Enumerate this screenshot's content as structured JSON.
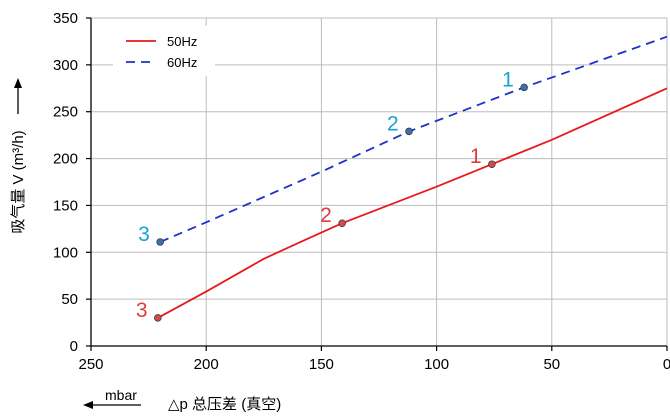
{
  "chart_data": {
    "type": "line",
    "xlabel": "△p 总压差 (真空)",
    "x_unit": "mbar",
    "ylabel": "吸气量 V (m³/h)",
    "xlim": [
      250,
      0
    ],
    "ylim": [
      0,
      350
    ],
    "x_ticks": [
      250,
      200,
      150,
      100,
      50,
      0
    ],
    "y_ticks": [
      0,
      50,
      100,
      150,
      200,
      250,
      300,
      350
    ],
    "grid": true,
    "legend_position": "top-left",
    "series": [
      {
        "name": "50Hz",
        "color": "#e8191c",
        "dash": "solid",
        "points": [
          {
            "x": 221,
            "y": 30
          },
          {
            "x": 200,
            "y": 58
          },
          {
            "x": 175,
            "y": 93
          },
          {
            "x": 160,
            "y": 110
          },
          {
            "x": 141,
            "y": 131
          },
          {
            "x": 100,
            "y": 170
          },
          {
            "x": 76,
            "y": 194
          },
          {
            "x": 50,
            "y": 220
          },
          {
            "x": 0,
            "y": 275
          }
        ],
        "markers": [
          {
            "x": 221,
            "y": 30,
            "label": "3"
          },
          {
            "x": 141,
            "y": 131,
            "label": "2"
          },
          {
            "x": 76,
            "y": 194,
            "label": "1"
          }
        ],
        "label_color": "#e03c3c"
      },
      {
        "name": "60Hz",
        "color": "#1f2fcc",
        "dash": "dashed",
        "points": [
          {
            "x": 220,
            "y": 111
          },
          {
            "x": 200,
            "y": 132
          },
          {
            "x": 150,
            "y": 186
          },
          {
            "x": 112,
            "y": 229
          },
          {
            "x": 62,
            "y": 276
          },
          {
            "x": 0,
            "y": 330
          }
        ],
        "markers": [
          {
            "x": 220,
            "y": 111,
            "label": "3"
          },
          {
            "x": 112,
            "y": 229,
            "label": "2"
          },
          {
            "x": 62,
            "y": 276,
            "label": "1"
          }
        ],
        "label_color": "#1a9fd6"
      }
    ]
  }
}
